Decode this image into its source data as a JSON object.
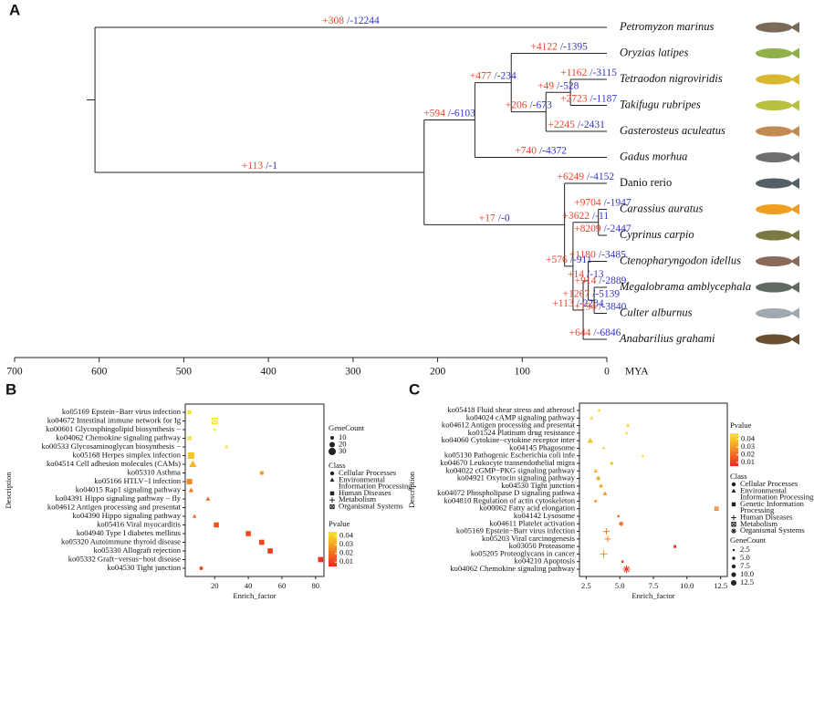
{
  "figure": {
    "panel_labels": [
      "A",
      "B",
      "C"
    ]
  },
  "chart_data": [
    {
      "type": "tree",
      "xlabel": "MYA",
      "xlim": [
        700,
        0
      ],
      "xticks": [
        700,
        600,
        500,
        400,
        300,
        200,
        100,
        0
      ],
      "gain_color": "#e8462c",
      "loss_color": "#3434c8",
      "nodes": [
        {
          "mya": 605,
          "children": [
            1,
            2
          ]
        },
        {
          "mya": 0,
          "label": "Petromyzon marinus",
          "italic": true,
          "gain": "+308",
          "loss": "/-12244"
        },
        {
          "mya": 216,
          "children": [
            3,
            12
          ],
          "gain": "+113",
          "loss": "/-1"
        },
        {
          "mya": 156,
          "children": [
            4,
            11
          ],
          "gain": "+594",
          "loss": "/-6103"
        },
        {
          "mya": 113,
          "children": [
            5,
            6
          ],
          "gain": "+477",
          "loss": "/-234"
        },
        {
          "mya": 0,
          "label": "Oryzias latipes",
          "italic": true,
          "gain": "+4122",
          "loss": "/-1395"
        },
        {
          "mya": 72,
          "children": [
            7,
            10
          ],
          "gain": "+206",
          "loss": "/-673"
        },
        {
          "mya": 43,
          "children": [
            8,
            9
          ],
          "gain": "+49",
          "loss": "/-528"
        },
        {
          "mya": 0,
          "label": "Tetraodon nigroviridis",
          "italic": true,
          "gain": "+1162",
          "loss": "/-3115"
        },
        {
          "mya": 0,
          "label": "Takifugu rubripes",
          "italic": true,
          "gain": "+2723",
          "loss": "/-1187"
        },
        {
          "mya": 0,
          "label": "Gasterosteus aculeatus",
          "italic": true,
          "gain": "+2245",
          "loss": "/-2431"
        },
        {
          "mya": 0,
          "label": "Gadus morhua",
          "italic": true,
          "gain": "+740",
          "loss": "/-4372"
        },
        {
          "mya": 50,
          "children": [
            13,
            14
          ],
          "gain": "+17",
          "loss": "/-0"
        },
        {
          "mya": 0,
          "label": "Danio rerio",
          "italic": false,
          "gain": "+6249",
          "loss": "/-4152"
        },
        {
          "mya": 40,
          "children": [
            15,
            18
          ],
          "gain": "+576",
          "loss": "/-911"
        },
        {
          "mya": 10,
          "children": [
            16,
            17
          ],
          "gain": "+3622",
          "loss": "/-11"
        },
        {
          "mya": 0,
          "label": "Carassius auratus",
          "italic": true,
          "gain": "+9704",
          "loss": "/-1947"
        },
        {
          "mya": 0,
          "label": "Cyprinus carpio",
          "italic": true,
          "gain": "+8209",
          "loss": "/-2447"
        },
        {
          "mya": 28,
          "children": [
            19,
            24
          ],
          "gain": "+113",
          "loss": "/-2284"
        },
        {
          "mya": 22,
          "children": [
            20,
            21
          ],
          "gain": "+14",
          "loss": "/-13"
        },
        {
          "mya": 0,
          "label": "Ctenopharyngodon idellus",
          "italic": true,
          "gain": "+1180",
          "loss": "/-3485"
        },
        {
          "mya": 15,
          "children": [
            22,
            23
          ],
          "gain": "+1267",
          "loss": "/-5139"
        },
        {
          "mya": 0,
          "label": "Megalobrama amblycephala",
          "italic": true,
          "gain": "+914",
          "loss": "/-2889"
        },
        {
          "mya": 0,
          "label": "Culter alburnus",
          "italic": true,
          "gain": "+194",
          "loss": "/-3840"
        },
        {
          "mya": 0,
          "label": "Anabarilius grahami",
          "italic": true,
          "gain": "+644",
          "loss": "/-6846"
        }
      ]
    },
    {
      "type": "dotplot",
      "xlabel": "Enrich_factor",
      "ylabel": "Description",
      "xlim": [
        2.5,
        85
      ],
      "xticks": [
        20,
        40,
        60,
        80
      ],
      "categories": [
        "ko05169 Epstein−Barr virus infection",
        "ko04672 Intestinal immune network for Ig",
        "ko00601 Glycosphingolipid biosynthesis −",
        "ko04062 Chemokine signaling pathway",
        "ko00533 Glycosaminoglycan biosynthesis −",
        "ko05168 Herpes simplex infection",
        "ko04514 Cell adhesion molecules (CAMs)",
        "ko05310 Asthma",
        "ko05166 HTLV−I infection",
        "ko04015 Rap1 signaling pathway",
        "ko04391 Hippo signaling pathway − fly",
        "ko04612 Antigen processing and presentat",
        "ko04390 Hippo signaling pathway",
        "ko05416 Viral myocarditis",
        "ko04940 Type I diabetes mellitus",
        "ko05320 Autoimmune thyroid disease",
        "ko05330 Allograft rejection",
        "ko05332 Graft−versus−host disease",
        "ko04530 Tight junction"
      ],
      "values": [
        5,
        20,
        20,
        5,
        27,
        6,
        7,
        48,
        5,
        6,
        16,
        null,
        8,
        21,
        40,
        48,
        53,
        83,
        12
      ],
      "sizes": [
        12,
        20,
        5,
        8,
        5,
        25,
        28,
        10,
        20,
        15,
        12,
        null,
        10,
        18,
        18,
        18,
        18,
        18,
        10
      ],
      "pvalues": [
        0.045,
        0.043,
        0.045,
        0.043,
        0.043,
        0.038,
        0.035,
        0.028,
        0.025,
        0.022,
        0.018,
        null,
        0.016,
        0.014,
        0.012,
        0.01,
        0.008,
        0.006,
        0.012
      ],
      "classes": [
        2,
        4,
        3,
        4,
        3,
        2,
        1,
        2,
        2,
        1,
        1,
        null,
        1,
        2,
        2,
        2,
        2,
        2,
        0
      ],
      "size_title": "GeneCount",
      "size_ticks": [
        10,
        20,
        30
      ],
      "class_title": "Class",
      "class_names": [
        [
          "Cellular Processes"
        ],
        [
          "Environmental",
          "Information Processing"
        ],
        [
          "Human Diseases"
        ],
        [
          "Metabolism"
        ],
        [
          "Organismal Systems"
        ]
      ],
      "class_shapes": [
        "circle",
        "triangle",
        "square",
        "plus",
        "boxx"
      ],
      "color_title": "Pvalue",
      "clim": [
        0.005,
        0.045
      ],
      "cticks": [
        0.04,
        0.03,
        0.02,
        0.01
      ],
      "colormap": [
        "#ec2a1e",
        "#f8e72c"
      ]
    },
    {
      "type": "dotplot",
      "xlabel": "Enrich_factor",
      "ylabel": "Description",
      "xlim": [
        2.0,
        13.0
      ],
      "xticks": [
        2.5,
        {
          "value": 5,
          "label": "5.0"
        },
        7.5,
        {
          "value": 10,
          "label": "10.0"
        },
        12.5
      ],
      "categories": [
        "ko05418 Fluid shear stress and atheroscl",
        "ko04024 cAMP signaling pathway",
        "ko04612 Antigen processing and presentat",
        "ko01524 Platinum drug resistance",
        "ko04060 Cytokine−cytokine receptor inter",
        "ko04145 Phagosome",
        "ko05130 Pathogenic Escherichia coli infe",
        "ko04670 Leukocyte transendothelial migra",
        "ko04022 cGMP−PKG signaling pathway",
        "ko04921 Oxytocin signaling pathway",
        "ko04530 Tight junction",
        "ko04072 Phospholipase D signaling pathwa",
        "ko04810 Regulation of actin cytoskeleton",
        "ko00062 Fatty acid elongation",
        "ko04142 Lysosome",
        "ko04611 Platelet activation",
        "ko05169 Epstein−Barr virus infection",
        "ko05203 Viral carcinogenesis",
        "ko03050 Proteasome",
        "ko05205 Proteoglycans in cancer",
        "ko04210 Apoptosis",
        "ko04062 Chemokine signaling pathway"
      ],
      "values": [
        3.45,
        2.9,
        5.6,
        5.5,
        2.8,
        3.8,
        6.7,
        4.4,
        3.2,
        3.4,
        3.6,
        3.9,
        3.2,
        12.2,
        4.9,
        5.1,
        4.0,
        4.1,
        9.1,
        3.8,
        5.2,
        5.5
      ],
      "sizes": [
        3,
        5,
        2.5,
        2.5,
        12,
        2.5,
        2.5,
        3,
        7,
        6,
        6,
        8,
        4,
        6,
        3,
        7,
        10,
        10,
        4,
        13,
        3,
        13
      ],
      "pvalues": [
        0.045,
        0.042,
        0.045,
        0.045,
        0.04,
        0.04,
        0.045,
        0.04,
        0.035,
        0.035,
        0.035,
        0.03,
        0.03,
        0.025,
        0.02,
        0.02,
        0.025,
        0.025,
        0.008,
        0.03,
        0.01,
        0.008
      ],
      "classes": [
        3,
        1,
        5,
        3,
        1,
        0,
        3,
        5,
        1,
        5,
        0,
        1,
        0,
        4,
        0,
        5,
        3,
        3,
        2,
        3,
        0,
        5
      ],
      "size_title": "GeneCount",
      "size_ticks": [
        2.5,
        {
          "value": 5,
          "label": "5.0"
        },
        7.5,
        {
          "value": 10,
          "label": "10.0"
        },
        12.5
      ],
      "class_title": "Class",
      "class_names": [
        [
          "Cellular Processes"
        ],
        [
          "Environmental",
          "Information Processing"
        ],
        [
          "Genetic Information",
          "Processing"
        ],
        [
          "Human Diseases"
        ],
        [
          "Metabolism"
        ],
        [
          "Organismal Systems"
        ]
      ],
      "class_shapes": [
        "circle",
        "triangle",
        "square",
        "plus",
        "boxx",
        "asterisk"
      ],
      "color_title": "Pvalue",
      "clim": [
        0.005,
        0.048
      ],
      "cticks": [
        0.04,
        0.03,
        0.02,
        0.01
      ],
      "colormap": [
        "#ec2a1e",
        "#f8e72c"
      ]
    }
  ]
}
